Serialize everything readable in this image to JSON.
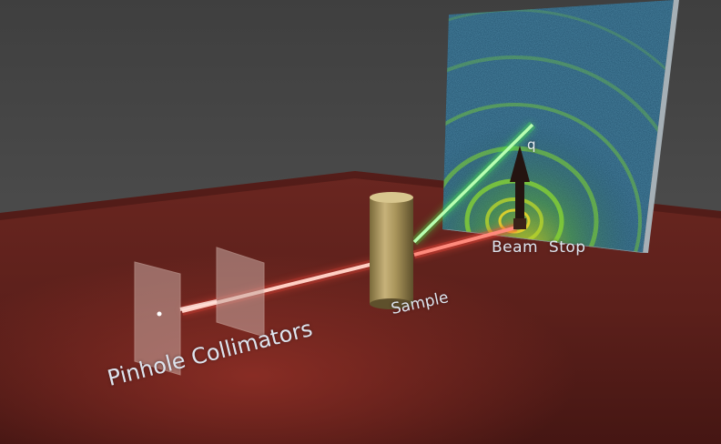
{
  "labels": {
    "pinhole_collimators": "Pinhole Collimators",
    "sample": "Sample",
    "beam_stop": "Beam  Stop",
    "q": "q"
  },
  "colors": {
    "background_wall": "#4a4a4a",
    "floor": "#5a1e1a",
    "beam_incident": "#ff6a5a",
    "beam_scattered": "#6bff6b",
    "detector_base": "#1d4a66",
    "ring": "#8bd832",
    "label_text": "#dde4ee"
  },
  "icons": [
    "pinhole-plate",
    "sample-cylinder",
    "beam-stop-arrow",
    "detector-panel"
  ]
}
